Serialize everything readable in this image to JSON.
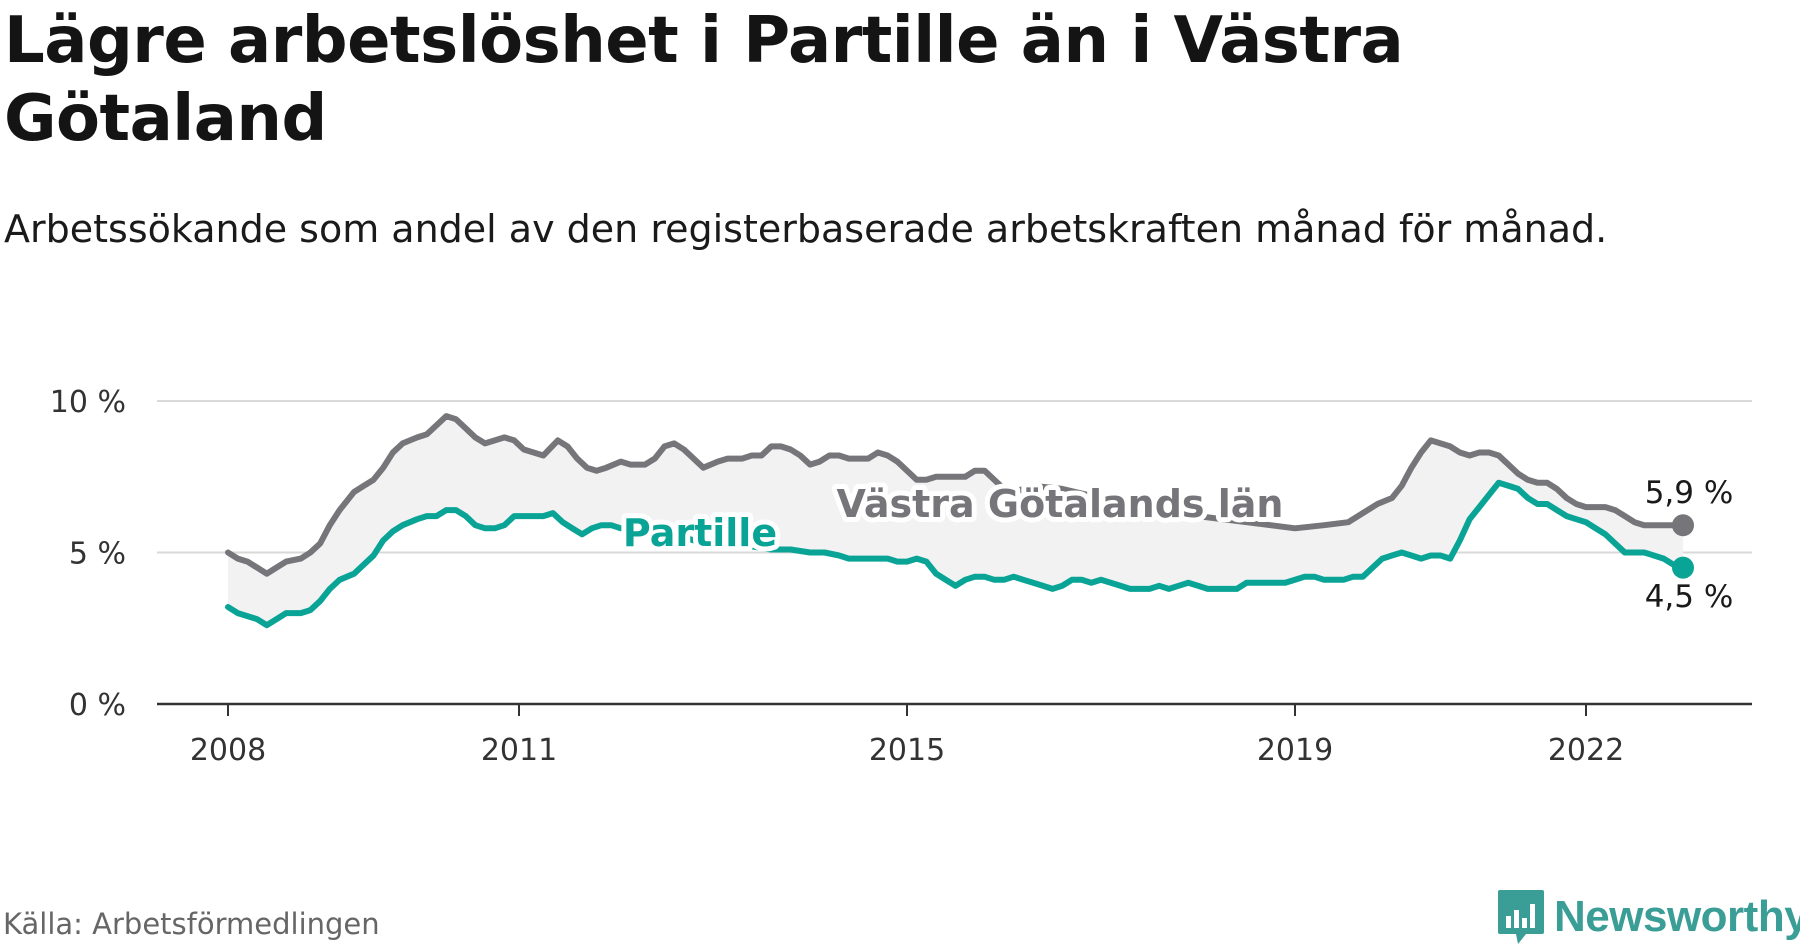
{
  "title": "Lägre arbetslöshet i Partille än i Västra Götaland",
  "subtitle": "Arbetssökande som andel av den registerbaserade arbetskraften månad för månad.",
  "source": "Källa: Arbetsförmedlingen",
  "logo": {
    "name": "Newsworthy",
    "icon": "bar-chart-speech-bubble-icon"
  },
  "colors": {
    "partille": "#0aa497",
    "vgl": "#76767a",
    "band": "#f2f2f2",
    "grid": "#d9d9d9",
    "axis": "#333333"
  },
  "chart_data": {
    "type": "line",
    "title": "Lägre arbetslöshet i Partille än i Västra Götaland",
    "xlabel": "",
    "ylabel": "",
    "ylim": [
      0,
      10
    ],
    "xlim": [
      2008.0,
      2023.1
    ],
    "y_ticks": [
      {
        "value": 0,
        "label": "0 %"
      },
      {
        "value": 5,
        "label": "5 %"
      },
      {
        "value": 10,
        "label": "10 %"
      }
    ],
    "x_ticks": [
      {
        "value": 2008,
        "label": "2008"
      },
      {
        "value": 2011,
        "label": "2011"
      },
      {
        "value": 2015,
        "label": "2015"
      },
      {
        "value": 2019,
        "label": "2019"
      },
      {
        "value": 2022,
        "label": "2022"
      }
    ],
    "series": [
      {
        "name": "Västra Götalands län",
        "key": "vgl",
        "end_label": "5,9 %",
        "points": [
          [
            2008.0,
            5.0
          ],
          [
            2008.1,
            4.8
          ],
          [
            2008.2,
            4.7
          ],
          [
            2008.3,
            4.5
          ],
          [
            2008.4,
            4.3
          ],
          [
            2008.5,
            4.5
          ],
          [
            2008.6,
            4.7
          ],
          [
            2008.75,
            4.8
          ],
          [
            2008.85,
            5.0
          ],
          [
            2008.95,
            5.3
          ],
          [
            2009.05,
            5.9
          ],
          [
            2009.15,
            6.4
          ],
          [
            2009.3,
            7.0
          ],
          [
            2009.4,
            7.2
          ],
          [
            2009.5,
            7.4
          ],
          [
            2009.6,
            7.8
          ],
          [
            2009.7,
            8.3
          ],
          [
            2009.8,
            8.6
          ],
          [
            2009.95,
            8.8
          ],
          [
            2010.05,
            8.9
          ],
          [
            2010.15,
            9.2
          ],
          [
            2010.25,
            9.5
          ],
          [
            2010.35,
            9.4
          ],
          [
            2010.45,
            9.1
          ],
          [
            2010.55,
            8.8
          ],
          [
            2010.65,
            8.6
          ],
          [
            2010.75,
            8.7
          ],
          [
            2010.85,
            8.8
          ],
          [
            2010.95,
            8.7
          ],
          [
            2011.05,
            8.4
          ],
          [
            2011.15,
            8.3
          ],
          [
            2011.25,
            8.2
          ],
          [
            2011.4,
            8.7
          ],
          [
            2011.5,
            8.5
          ],
          [
            2011.6,
            8.1
          ],
          [
            2011.7,
            7.8
          ],
          [
            2011.8,
            7.7
          ],
          [
            2011.9,
            7.8
          ],
          [
            2012.05,
            8.0
          ],
          [
            2012.15,
            7.9
          ],
          [
            2012.3,
            7.9
          ],
          [
            2012.4,
            8.1
          ],
          [
            2012.5,
            8.5
          ],
          [
            2012.6,
            8.6
          ],
          [
            2012.7,
            8.4
          ],
          [
            2012.8,
            8.1
          ],
          [
            2012.9,
            7.8
          ],
          [
            2013.05,
            8.0
          ],
          [
            2013.15,
            8.1
          ],
          [
            2013.3,
            8.1
          ],
          [
            2013.4,
            8.2
          ],
          [
            2013.5,
            8.2
          ],
          [
            2013.6,
            8.5
          ],
          [
            2013.7,
            8.5
          ],
          [
            2013.8,
            8.4
          ],
          [
            2013.9,
            8.2
          ],
          [
            2014.0,
            7.9
          ],
          [
            2014.1,
            8.0
          ],
          [
            2014.2,
            8.2
          ],
          [
            2014.3,
            8.2
          ],
          [
            2014.4,
            8.1
          ],
          [
            2014.5,
            8.1
          ],
          [
            2014.6,
            8.1
          ],
          [
            2014.7,
            8.3
          ],
          [
            2014.8,
            8.2
          ],
          [
            2014.9,
            8.0
          ],
          [
            2015.0,
            7.7
          ],
          [
            2015.1,
            7.4
          ],
          [
            2015.2,
            7.4
          ],
          [
            2015.3,
            7.5
          ],
          [
            2015.4,
            7.5
          ],
          [
            2015.5,
            7.5
          ],
          [
            2015.6,
            7.5
          ],
          [
            2015.7,
            7.7
          ],
          [
            2015.8,
            7.7
          ],
          [
            2015.9,
            7.4
          ],
          [
            2016.0,
            7.1
          ],
          [
            2016.1,
            7.0
          ],
          [
            2016.2,
            7.1
          ],
          [
            2016.3,
            7.2
          ],
          [
            2016.6,
            7.1
          ],
          [
            2017.0,
            6.8
          ],
          [
            2017.5,
            6.5
          ],
          [
            2018.0,
            6.2
          ],
          [
            2018.5,
            6.0
          ],
          [
            2019.0,
            5.8
          ],
          [
            2019.3,
            5.9
          ],
          [
            2019.55,
            6.0
          ],
          [
            2019.7,
            6.3
          ],
          [
            2019.85,
            6.6
          ],
          [
            2020.0,
            6.8
          ],
          [
            2020.1,
            7.2
          ],
          [
            2020.2,
            7.8
          ],
          [
            2020.3,
            8.3
          ],
          [
            2020.4,
            8.7
          ],
          [
            2020.5,
            8.6
          ],
          [
            2020.6,
            8.5
          ],
          [
            2020.7,
            8.3
          ],
          [
            2020.8,
            8.2
          ],
          [
            2020.9,
            8.3
          ],
          [
            2021.0,
            8.3
          ],
          [
            2021.1,
            8.2
          ],
          [
            2021.2,
            7.9
          ],
          [
            2021.3,
            7.6
          ],
          [
            2021.4,
            7.4
          ],
          [
            2021.5,
            7.3
          ],
          [
            2021.6,
            7.3
          ],
          [
            2021.7,
            7.1
          ],
          [
            2021.8,
            6.8
          ],
          [
            2021.9,
            6.6
          ],
          [
            2022.0,
            6.5
          ],
          [
            2022.1,
            6.5
          ],
          [
            2022.2,
            6.5
          ],
          [
            2022.3,
            6.4
          ],
          [
            2022.4,
            6.2
          ],
          [
            2022.5,
            6.0
          ],
          [
            2022.6,
            5.9
          ],
          [
            2022.8,
            5.9
          ],
          [
            2023.0,
            5.9
          ]
        ]
      },
      {
        "name": "Partille",
        "key": "partille",
        "end_label": "4,5 %",
        "points": [
          [
            2008.0,
            3.2
          ],
          [
            2008.1,
            3.0
          ],
          [
            2008.2,
            2.9
          ],
          [
            2008.3,
            2.8
          ],
          [
            2008.4,
            2.6
          ],
          [
            2008.5,
            2.8
          ],
          [
            2008.6,
            3.0
          ],
          [
            2008.75,
            3.0
          ],
          [
            2008.85,
            3.1
          ],
          [
            2008.95,
            3.4
          ],
          [
            2009.05,
            3.8
          ],
          [
            2009.15,
            4.1
          ],
          [
            2009.3,
            4.3
          ],
          [
            2009.4,
            4.6
          ],
          [
            2009.5,
            4.9
          ],
          [
            2009.6,
            5.4
          ],
          [
            2009.7,
            5.7
          ],
          [
            2009.8,
            5.9
          ],
          [
            2009.95,
            6.1
          ],
          [
            2010.05,
            6.2
          ],
          [
            2010.15,
            6.2
          ],
          [
            2010.25,
            6.4
          ],
          [
            2010.35,
            6.4
          ],
          [
            2010.45,
            6.2
          ],
          [
            2010.55,
            5.9
          ],
          [
            2010.65,
            5.8
          ],
          [
            2010.75,
            5.8
          ],
          [
            2010.85,
            5.9
          ],
          [
            2010.95,
            6.2
          ],
          [
            2011.05,
            6.2
          ],
          [
            2011.15,
            6.2
          ],
          [
            2011.25,
            6.2
          ],
          [
            2011.35,
            6.3
          ],
          [
            2011.45,
            6.0
          ],
          [
            2011.55,
            5.8
          ],
          [
            2011.65,
            5.6
          ],
          [
            2011.75,
            5.8
          ],
          [
            2011.85,
            5.9
          ],
          [
            2011.95,
            5.9
          ],
          [
            2012.05,
            5.8
          ],
          [
            2012.15,
            5.8
          ],
          [
            2012.25,
            5.7
          ],
          [
            2012.35,
            5.8
          ],
          [
            2012.45,
            5.7
          ],
          [
            2012.6,
            5.6
          ],
          [
            2012.8,
            5.4
          ],
          [
            2013.0,
            5.3
          ],
          [
            2013.2,
            5.2
          ],
          [
            2013.4,
            5.2
          ],
          [
            2013.6,
            5.1
          ],
          [
            2013.8,
            5.1
          ],
          [
            2014.0,
            5.0
          ],
          [
            2014.15,
            5.0
          ],
          [
            2014.3,
            4.9
          ],
          [
            2014.4,
            4.8
          ],
          [
            2014.5,
            4.8
          ],
          [
            2014.6,
            4.8
          ],
          [
            2014.7,
            4.8
          ],
          [
            2014.8,
            4.8
          ],
          [
            2014.9,
            4.7
          ],
          [
            2015.0,
            4.7
          ],
          [
            2015.1,
            4.8
          ],
          [
            2015.2,
            4.7
          ],
          [
            2015.3,
            4.3
          ],
          [
            2015.4,
            4.1
          ],
          [
            2015.5,
            3.9
          ],
          [
            2015.6,
            4.1
          ],
          [
            2015.7,
            4.2
          ],
          [
            2015.8,
            4.2
          ],
          [
            2015.9,
            4.1
          ],
          [
            2016.0,
            4.1
          ],
          [
            2016.1,
            4.2
          ],
          [
            2016.2,
            4.1
          ],
          [
            2016.3,
            4.0
          ],
          [
            2016.4,
            3.9
          ],
          [
            2016.5,
            3.8
          ],
          [
            2016.6,
            3.9
          ],
          [
            2016.7,
            4.1
          ],
          [
            2016.8,
            4.1
          ],
          [
            2016.9,
            4.0
          ],
          [
            2017.0,
            4.1
          ],
          [
            2017.1,
            4.0
          ],
          [
            2017.2,
            3.9
          ],
          [
            2017.3,
            3.8
          ],
          [
            2017.4,
            3.8
          ],
          [
            2017.5,
            3.8
          ],
          [
            2017.6,
            3.9
          ],
          [
            2017.7,
            3.8
          ],
          [
            2017.8,
            3.9
          ],
          [
            2017.9,
            4.0
          ],
          [
            2018.0,
            3.9
          ],
          [
            2018.1,
            3.8
          ],
          [
            2018.2,
            3.8
          ],
          [
            2018.3,
            3.8
          ],
          [
            2018.4,
            3.8
          ],
          [
            2018.5,
            4.0
          ],
          [
            2018.6,
            4.0
          ],
          [
            2018.7,
            4.0
          ],
          [
            2018.8,
            4.0
          ],
          [
            2018.9,
            4.0
          ],
          [
            2019.0,
            4.1
          ],
          [
            2019.1,
            4.2
          ],
          [
            2019.2,
            4.2
          ],
          [
            2019.3,
            4.1
          ],
          [
            2019.4,
            4.1
          ],
          [
            2019.5,
            4.1
          ],
          [
            2019.6,
            4.2
          ],
          [
            2019.7,
            4.2
          ],
          [
            2019.8,
            4.5
          ],
          [
            2019.9,
            4.8
          ],
          [
            2020.0,
            4.9
          ],
          [
            2020.1,
            5.0
          ],
          [
            2020.2,
            4.9
          ],
          [
            2020.3,
            4.8
          ],
          [
            2020.4,
            4.9
          ],
          [
            2020.5,
            4.9
          ],
          [
            2020.6,
            4.8
          ],
          [
            2020.7,
            5.4
          ],
          [
            2020.8,
            6.1
          ],
          [
            2020.9,
            6.5
          ],
          [
            2021.0,
            6.9
          ],
          [
            2021.1,
            7.3
          ],
          [
            2021.2,
            7.2
          ],
          [
            2021.3,
            7.1
          ],
          [
            2021.4,
            6.8
          ],
          [
            2021.5,
            6.6
          ],
          [
            2021.6,
            6.6
          ],
          [
            2021.7,
            6.4
          ],
          [
            2021.8,
            6.2
          ],
          [
            2021.9,
            6.1
          ],
          [
            2022.0,
            6.0
          ],
          [
            2022.1,
            5.8
          ],
          [
            2022.2,
            5.6
          ],
          [
            2022.3,
            5.3
          ],
          [
            2022.4,
            5.0
          ],
          [
            2022.5,
            5.0
          ],
          [
            2022.6,
            5.0
          ],
          [
            2022.7,
            4.9
          ],
          [
            2022.8,
            4.8
          ],
          [
            2022.9,
            4.6
          ],
          [
            2023.0,
            4.5
          ]
        ]
      }
    ],
    "annotations": [
      {
        "text": "Partille",
        "series": "partille"
      },
      {
        "text": "Västra Götalands län",
        "series": "vgl"
      }
    ]
  }
}
